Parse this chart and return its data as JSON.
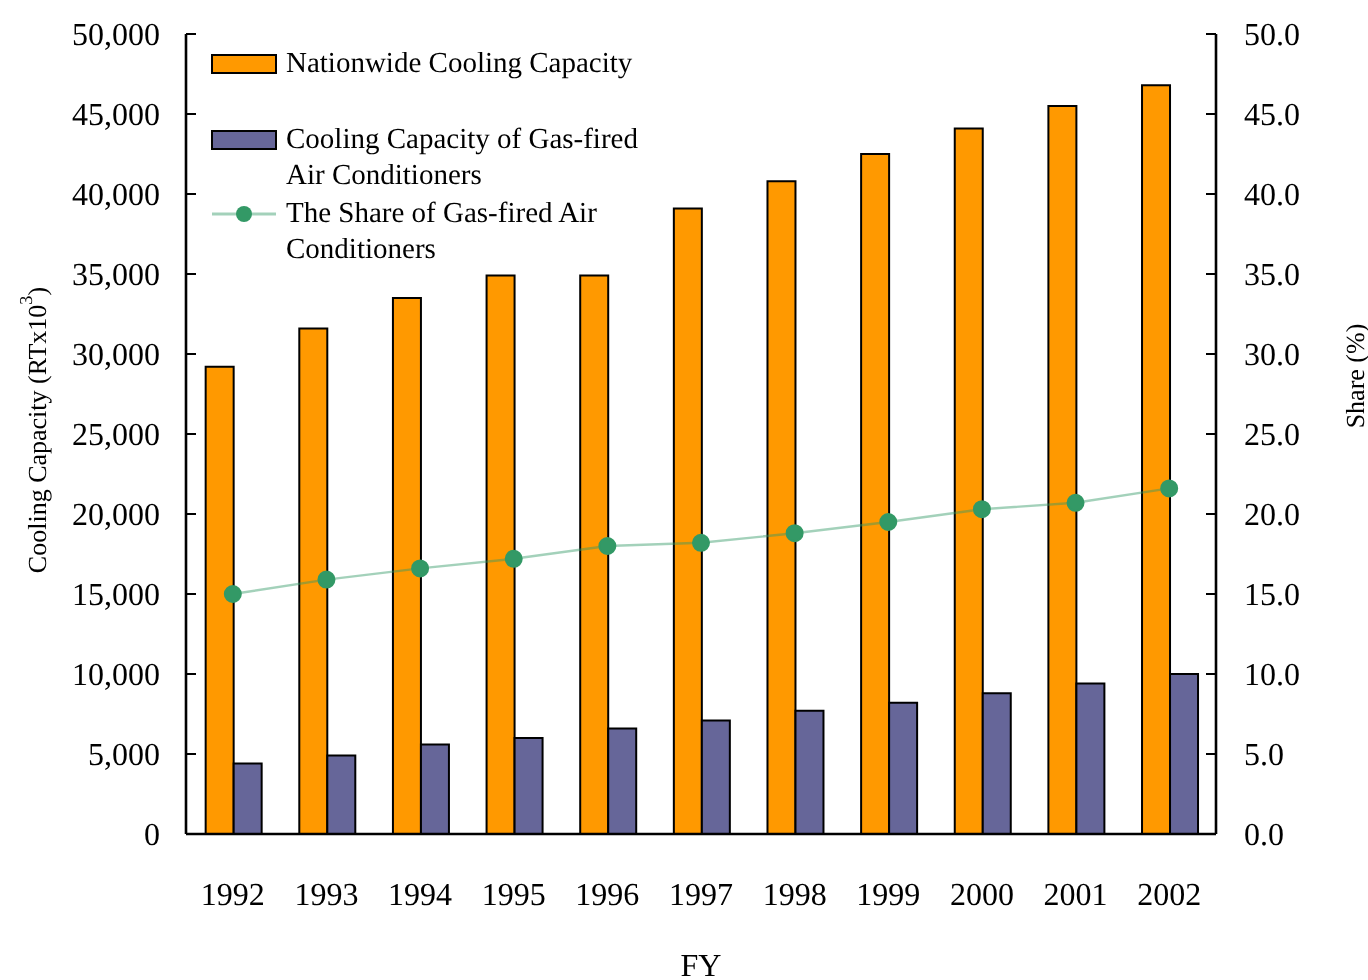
{
  "chart_data": {
    "type": "bar",
    "xlabel": "FY",
    "ylabel": "Cooling Capacity (RTx10$^{3}$)",
    "y2label": "Share (%)",
    "categories": [
      "1992",
      "1993",
      "1994",
      "1995",
      "1996",
      "1997",
      "1998",
      "1999",
      "2000",
      "2001",
      "2002"
    ],
    "series": [
      {
        "name": "Nationwide Cooling Capacity",
        "color": "#ff9900",
        "values": [
          29200,
          31600,
          33500,
          34900,
          34900,
          39100,
          40800,
          42500,
          44100,
          45500,
          46800
        ]
      },
      {
        "name": "Cooling Capacity of Gas-fired Air Conditioners",
        "color": "#666699",
        "values": [
          4400,
          4900,
          5600,
          6000,
          6600,
          7100,
          7700,
          8200,
          8800,
          9400,
          10000
        ]
      },
      {
        "name": "The Share of Gas-fired Air Conditioners",
        "type": "line",
        "axis": "y2",
        "color": "#339966",
        "values": [
          15.0,
          15.9,
          16.6,
          17.2,
          18.0,
          18.2,
          18.8,
          19.5,
          20.3,
          20.7,
          21.6
        ]
      }
    ],
    "ylim": [
      0,
      50000
    ],
    "yticks": [
      {
        "value": 0,
        "label": "0"
      },
      {
        "value": 5000,
        "label": "5,000"
      },
      {
        "value": 10000,
        "label": "10,000"
      },
      {
        "value": 15000,
        "label": "15,000"
      },
      {
        "value": 20000,
        "label": "20,000"
      },
      {
        "value": 25000,
        "label": "25,000"
      },
      {
        "value": 30000,
        "label": "30,000"
      },
      {
        "value": 35000,
        "label": "35,000"
      },
      {
        "value": 40000,
        "label": "40,000"
      },
      {
        "value": 45000,
        "label": "45,000"
      },
      {
        "value": 50000,
        "label": "50,000"
      }
    ],
    "y2lim": [
      0,
      50
    ],
    "y2ticks": [
      {
        "value": 0,
        "label": "0.0"
      },
      {
        "value": 5,
        "label": "5.0"
      },
      {
        "value": 10,
        "label": "10.0"
      },
      {
        "value": 15,
        "label": "15.0"
      },
      {
        "value": 20,
        "label": "20.0"
      },
      {
        "value": 25,
        "label": "25.0"
      },
      {
        "value": 30,
        "label": "30.0"
      },
      {
        "value": 35,
        "label": "35.0"
      },
      {
        "value": 40,
        "label": "40.0"
      },
      {
        "value": 45,
        "label": "45.0"
      },
      {
        "value": 50,
        "label": "50.0"
      }
    ],
    "marker": "circle",
    "legend": "top left"
  }
}
